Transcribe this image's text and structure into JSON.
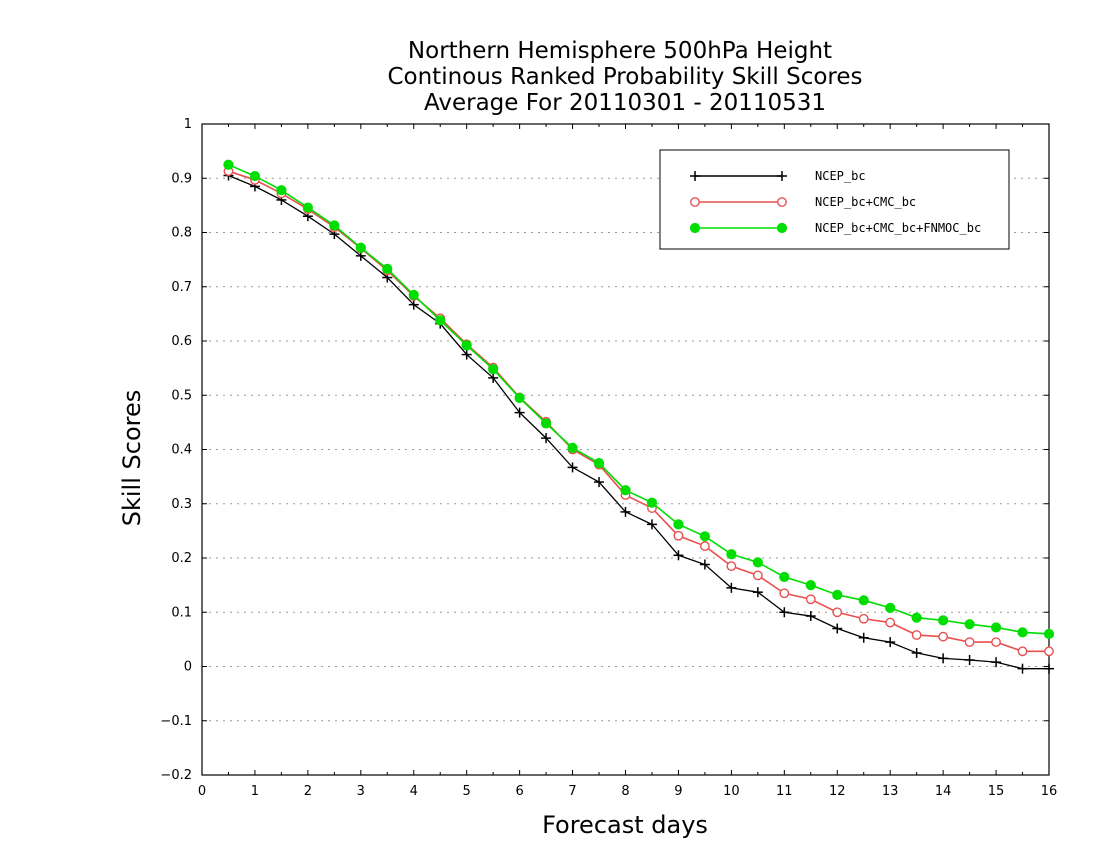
{
  "chart_data": {
    "type": "line",
    "title_lines": [
      "Northern Hemisphere 500hPa Height",
      "Continous Ranked Probability Skill Scores",
      "Average For 20110301 - 20110531"
    ],
    "xlabel": "Forecast days",
    "ylabel": "Skill Scores",
    "xlim": [
      0,
      16
    ],
    "ylim": [
      -0.2,
      1
    ],
    "xticks": [
      "0",
      "1",
      "2",
      "3",
      "4",
      "5",
      "6",
      "7",
      "8",
      "9",
      "10",
      "11",
      "12",
      "13",
      "14",
      "15",
      "16"
    ],
    "yticks": [
      "−0.2",
      "−0.1",
      "0",
      "0.1",
      "0.2",
      "0.3",
      "0.4",
      "0.5",
      "0.6",
      "0.7",
      "0.8",
      "0.9",
      "1"
    ],
    "grid": "horizontal dotted",
    "legend_position": "top-right",
    "x": [
      0.5,
      1.0,
      1.5,
      2.0,
      2.5,
      3.0,
      3.5,
      4.0,
      4.5,
      5.0,
      5.5,
      6.0,
      6.5,
      7.0,
      7.5,
      8.0,
      8.5,
      9.0,
      9.5,
      10.0,
      10.5,
      11.0,
      11.5,
      12.0,
      12.5,
      13.0,
      13.5,
      14.0,
      14.5,
      15.0,
      15.5,
      16.0
    ],
    "series": [
      {
        "name": "NCEP_bc",
        "color": "#000000",
        "marker": "plus",
        "values": [
          0.905,
          0.885,
          0.86,
          0.83,
          0.797,
          0.757,
          0.717,
          0.667,
          0.632,
          0.575,
          0.532,
          0.468,
          0.421,
          0.367,
          0.34,
          0.285,
          0.262,
          0.205,
          0.188,
          0.145,
          0.137,
          0.1,
          0.093,
          0.07,
          0.053,
          0.045,
          0.025,
          0.015,
          0.012,
          0.008,
          -0.004,
          -0.004
        ]
      },
      {
        "name": "NCEP_bc+CMC_bc",
        "color": "#e85050",
        "marker": "open-circle",
        "values": [
          0.913,
          0.897,
          0.872,
          0.843,
          0.81,
          0.771,
          0.73,
          0.683,
          0.642,
          0.594,
          0.551,
          0.496,
          0.451,
          0.4,
          0.372,
          0.316,
          0.292,
          0.241,
          0.222,
          0.185,
          0.168,
          0.135,
          0.124,
          0.1,
          0.088,
          0.081,
          0.058,
          0.055,
          0.045,
          0.045,
          0.028,
          0.028
        ]
      },
      {
        "name": "NCEP_bc+CMC_bc+FNMOC_bc",
        "color": "#00dd00",
        "marker": "filled-circle",
        "values": [
          0.925,
          0.904,
          0.878,
          0.846,
          0.813,
          0.772,
          0.733,
          0.685,
          0.638,
          0.592,
          0.548,
          0.495,
          0.448,
          0.403,
          0.375,
          0.325,
          0.302,
          0.262,
          0.24,
          0.207,
          0.192,
          0.165,
          0.15,
          0.132,
          0.122,
          0.108,
          0.09,
          0.085,
          0.078,
          0.072,
          0.063,
          0.06
        ]
      }
    ]
  }
}
